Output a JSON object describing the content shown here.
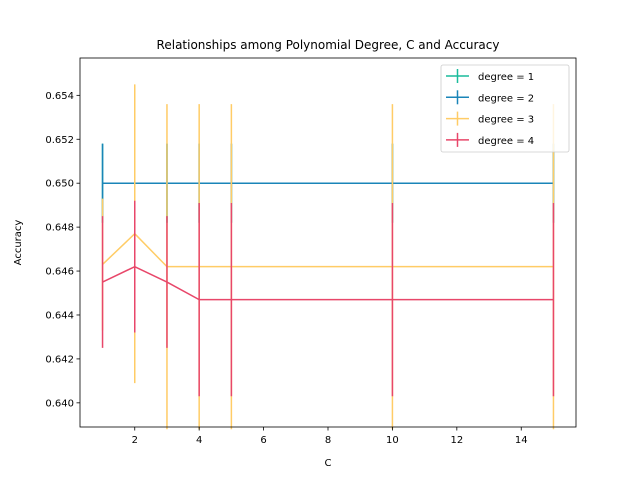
{
  "chart_data": {
    "type": "line",
    "title": "Relationships among Polynomial Degree, C and Accuracy",
    "xlabel": "C",
    "ylabel": "Accuracy",
    "xlim": [
      0.3,
      15.7
    ],
    "ylim": [
      0.6389,
      0.6557
    ],
    "x_ticks": [
      2,
      4,
      6,
      8,
      10,
      12,
      14
    ],
    "x_tick_labels": [
      "2",
      "4",
      "6",
      "8",
      "10",
      "12",
      "14"
    ],
    "y_ticks": [
      0.64,
      0.642,
      0.644,
      0.646,
      0.648,
      0.65,
      0.652,
      0.654
    ],
    "y_tick_labels": [
      "0.640",
      "0.642",
      "0.644",
      "0.646",
      "0.648",
      "0.650",
      "0.652",
      "0.654"
    ],
    "x": [
      1,
      2,
      3,
      4,
      5,
      10,
      15
    ],
    "legend_position": "top-right",
    "series": [
      {
        "name": "degree = 1",
        "color": "#1ABC9C",
        "values": [
          0.65,
          0.65,
          0.65,
          0.65,
          0.65,
          0.65,
          0.65
        ],
        "errors": [
          0.0018,
          0.0018,
          0.0018,
          0.0018,
          0.0018,
          0.0018,
          0.0018
        ]
      },
      {
        "name": "degree = 2",
        "color": "#1A85B8",
        "values": [
          0.65,
          0.65,
          0.65,
          0.65,
          0.65,
          0.65,
          0.65
        ],
        "errors": [
          0.0018,
          0.0018,
          0.0018,
          0.0018,
          0.0018,
          0.0018,
          0.0018
        ]
      },
      {
        "name": "degree = 3",
        "color": "#FFCC66",
        "values": [
          0.6463,
          0.6477,
          0.6462,
          0.6462,
          0.6462,
          0.6462,
          0.6462
        ],
        "errors": [
          0.003,
          0.0068,
          0.0074,
          0.0074,
          0.0074,
          0.0074,
          0.0074
        ]
      },
      {
        "name": "degree = 4",
        "color": "#E8476A",
        "values": [
          0.6455,
          0.6462,
          0.6455,
          0.6447,
          0.6447,
          0.6447,
          0.6447
        ],
        "errors": [
          0.003,
          0.003,
          0.003,
          0.0044,
          0.0044,
          0.0044,
          0.0044
        ]
      }
    ]
  }
}
